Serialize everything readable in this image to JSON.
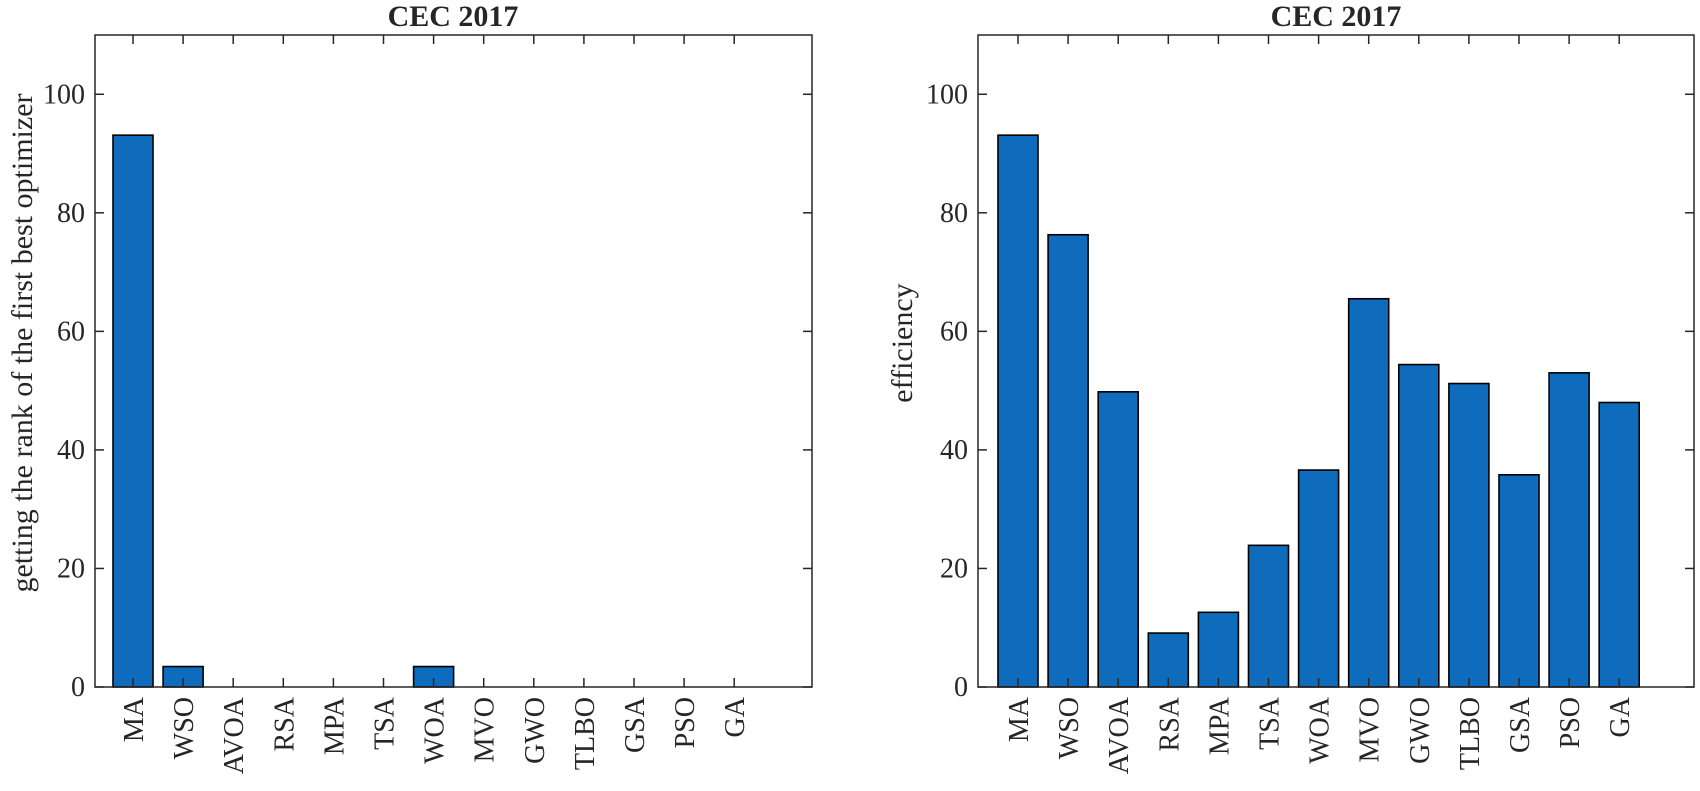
{
  "colors": {
    "bar_fill": "#0f6cbd",
    "bar_stroke": "#000000",
    "axis": "#262626",
    "background": "#ffffff"
  },
  "chart_data": [
    {
      "type": "bar",
      "title": "CEC 2017",
      "xlabel": "",
      "ylabel": "getting the rank of the first best optimizer",
      "ylim": [
        0,
        110
      ],
      "yticks": [
        "0",
        "20",
        "40",
        "60",
        "80",
        "100"
      ],
      "grid": false,
      "categories": [
        "MA",
        "WSO",
        "AVOA",
        "RSA",
        "MPA",
        "TSA",
        "WOA",
        "MVO",
        "GWO",
        "TLBO",
        "GSA",
        "PSO",
        "GA"
      ],
      "values": [
        93.1,
        3.45,
        0,
        0,
        0,
        0,
        3.45,
        0,
        0,
        0,
        0,
        0,
        0
      ]
    },
    {
      "type": "bar",
      "title": "CEC 2017",
      "xlabel": "",
      "ylabel": "efficiency",
      "ylim": [
        0,
        110
      ],
      "yticks": [
        "0",
        "20",
        "40",
        "60",
        "80",
        "100"
      ],
      "grid": false,
      "categories": [
        "MA",
        "WSO",
        "AVOA",
        "RSA",
        "MPA",
        "TSA",
        "WOA",
        "MVO",
        "GWO",
        "TLBO",
        "GSA",
        "PSO",
        "GA"
      ],
      "values": [
        93.1,
        76.3,
        49.8,
        9.1,
        12.6,
        23.9,
        36.6,
        65.5,
        54.4,
        51.2,
        35.8,
        53,
        48
      ]
    }
  ]
}
